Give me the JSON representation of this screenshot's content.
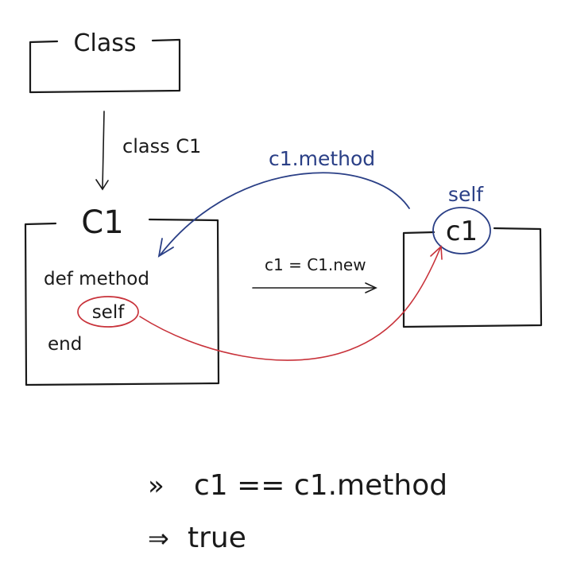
{
  "diagram": {
    "class_box": {
      "label": "Class"
    },
    "inherit_arrow": {
      "label": "class C1"
    },
    "c1_box": {
      "label": "C1",
      "code_lines": [
        "def method",
        "self",
        "end"
      ]
    },
    "instance_arrow": {
      "label": "c1 = C1.new"
    },
    "method_call_arrow": {
      "label": "c1.method"
    },
    "instance_box": {
      "label": "c1",
      "self_label": "self"
    },
    "colors": {
      "ink": "#1a1a1a",
      "blue": "#2a3f86",
      "red": "#c8323a"
    }
  },
  "console": {
    "input_prompt": "»",
    "input_expr": "c1 == c1.method",
    "output_prompt": "⇒",
    "output_value": "true"
  }
}
